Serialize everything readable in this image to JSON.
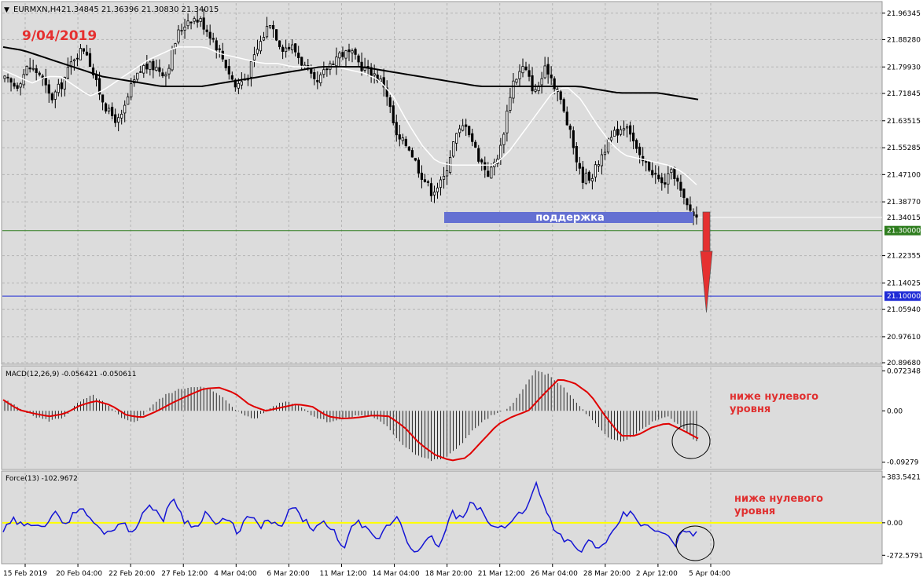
{
  "header": {
    "symbol": "EURMXN,H4",
    "ohlc": "21.34845 21.36396 21.30830 21.34015",
    "date_note": "9/04/2019"
  },
  "colors": {
    "panel_bg": "#dcdcdc",
    "candle": "#000000",
    "ma_fast": "#ffffff",
    "ma_slow": "#000000",
    "support_line": "#2e7d1e",
    "target_line": "#1f2bd6",
    "support_zone": "#6470d2",
    "arrow": "#e53030",
    "macd_signal": "#e00000",
    "force_line": "#1515d4",
    "force_zero": "#ffff00",
    "annotation": "#e03030"
  },
  "chart_data": [
    {
      "type": "candlestick",
      "panel": "price",
      "ylim": [
        20.8968,
        21.994
      ],
      "yticks": [
        "21.96345",
        "21.88280",
        "21.79930",
        "21.71845",
        "21.63515",
        "21.55285",
        "21.47100",
        "21.38770",
        "21.22355",
        "21.14025",
        "21.05940",
        "20.97610",
        "20.89680"
      ],
      "price_labels": {
        "last": "21.34015",
        "support": "21.30000",
        "target": "21.10000"
      },
      "support_label": "поддержка",
      "x": [
        "15 Feb 2019",
        "20 Feb 04:00",
        "22 Feb 20:00",
        "27 Feb 12:00",
        "4 Mar 04:00",
        "6 Mar 20:00",
        "11 Mar 12:00",
        "14 Mar 04:00",
        "18 Mar 20:00",
        "21 Mar 12:00",
        "26 Mar 04:00",
        "28 Mar 20:00",
        "2 Apr 12:00",
        "5 Apr 04:00"
      ],
      "close_path": [
        21.76,
        21.74,
        21.8,
        21.78,
        21.7,
        21.75,
        21.83,
        21.86,
        21.74,
        21.66,
        21.63,
        21.74,
        21.8,
        21.8,
        21.78,
        21.9,
        21.95,
        21.94,
        21.89,
        21.82,
        21.74,
        21.77,
        21.86,
        21.94,
        21.86,
        21.86,
        21.8,
        21.74,
        21.8,
        21.84,
        21.84,
        21.8,
        21.78,
        21.74,
        21.58,
        21.56,
        21.48,
        21.42,
        21.45,
        21.58,
        21.63,
        21.53,
        21.47,
        21.55,
        21.75,
        21.8,
        21.72,
        21.8,
        21.72,
        21.6,
        21.46,
        21.47,
        21.55,
        21.6,
        21.63,
        21.52,
        21.49,
        21.44,
        21.48,
        21.38,
        21.34
      ],
      "ma_fast_path": [
        21.79,
        21.77,
        21.75,
        21.77,
        21.77,
        21.74,
        21.71,
        21.73,
        21.76,
        21.79,
        21.82,
        21.84,
        21.86,
        21.86,
        21.86,
        21.84,
        21.83,
        21.82,
        21.81,
        21.81,
        21.8,
        21.8,
        21.8,
        21.8,
        21.79,
        21.78,
        21.76,
        21.71,
        21.63,
        21.56,
        21.51,
        21.5,
        21.5,
        21.5,
        21.5,
        21.54,
        21.6,
        21.66,
        21.72,
        21.74,
        21.7,
        21.63,
        21.57,
        21.53,
        21.52,
        21.51,
        21.5,
        21.48,
        21.44
      ],
      "ma_slow_path": [
        21.86,
        21.85,
        21.83,
        21.81,
        21.79,
        21.77,
        21.76,
        21.75,
        21.74,
        21.74,
        21.74,
        21.75,
        21.76,
        21.77,
        21.78,
        21.79,
        21.8,
        21.8,
        21.8,
        21.79,
        21.78,
        21.77,
        21.76,
        21.75,
        21.74,
        21.74,
        21.74,
        21.74,
        21.74,
        21.74,
        21.73,
        21.72,
        21.72,
        21.72,
        21.71,
        21.7
      ]
    },
    {
      "type": "bar+line",
      "panel": "MACD",
      "label": "MACD(12,26,9) -0.056421 -0.050611",
      "ylim": [
        -0.1032,
        0.0784
      ],
      "yticks": [
        "0.072348",
        "0.00",
        "-0.09279"
      ],
      "histogram_path": [
        0.02,
        0.005,
        -0.01,
        -0.018,
        -0.012,
        0.015,
        0.028,
        0.01,
        -0.015,
        -0.02,
        0.01,
        0.03,
        0.04,
        0.045,
        0.038,
        0.02,
        -0.005,
        -0.015,
        0.005,
        0.018,
        0.01,
        -0.01,
        -0.02,
        -0.015,
        -0.008,
        -0.01,
        -0.03,
        -0.06,
        -0.08,
        -0.09,
        -0.085,
        -0.06,
        -0.03,
        -0.01,
        0.0,
        0.03,
        0.072,
        0.065,
        0.04,
        0.01,
        -0.02,
        -0.05,
        -0.056,
        -0.04,
        -0.02,
        -0.01,
        -0.03,
        -0.056
      ],
      "signal_path": [
        0.02,
        0.002,
        -0.005,
        -0.01,
        -0.005,
        0.01,
        0.018,
        0.01,
        -0.008,
        -0.012,
        0.0,
        0.015,
        0.028,
        0.04,
        0.042,
        0.032,
        0.01,
        0.0,
        0.006,
        0.012,
        0.008,
        -0.01,
        -0.014,
        -0.012,
        -0.008,
        -0.01,
        -0.03,
        -0.06,
        -0.08,
        -0.09,
        -0.085,
        -0.055,
        -0.025,
        -0.01,
        0.0,
        0.03,
        0.058,
        0.05,
        0.03,
        -0.01,
        -0.045,
        -0.045,
        -0.03,
        -0.022,
        -0.035,
        -0.05
      ],
      "annotation": [
        "ниже нулевого",
        "уровня"
      ]
    },
    {
      "type": "line",
      "panel": "Force",
      "label": "Force(13) -102.9672",
      "ylim": [
        -330,
        420
      ],
      "yticks": [
        "383.5421",
        "0.00",
        "-272.5791"
      ],
      "values": [
        -70,
        20,
        -40,
        10,
        -20,
        80,
        -10,
        130,
        60,
        -60,
        -80,
        20,
        -90,
        70,
        140,
        30,
        210,
        20,
        -40,
        90,
        -20,
        30,
        -80,
        60,
        -30,
        20,
        -60,
        140,
        40,
        -50,
        -10,
        -80,
        -210,
        20,
        -60,
        -150,
        -30,
        60,
        -180,
        -250,
        -120,
        -200,
        90,
        20,
        180,
        70,
        -50,
        -30,
        60,
        100,
        340,
        80,
        -100,
        -150,
        -260,
        -140,
        -230,
        -120,
        60,
        80,
        -30,
        -60,
        -100,
        -180,
        -50,
        -100
      ]
    }
  ]
}
